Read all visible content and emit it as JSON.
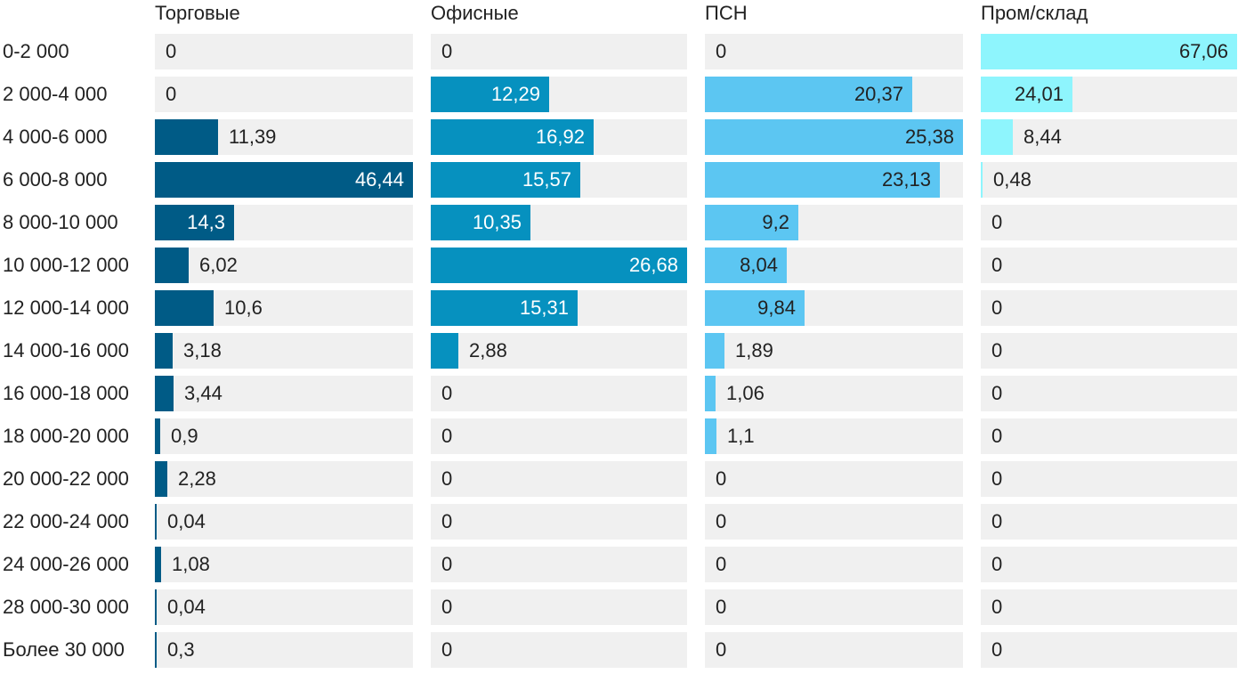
{
  "chart_data": {
    "type": "bar",
    "orientation": "horizontal",
    "categories": [
      "0-2 000",
      "2 000-4 000",
      "4 000-6 000",
      "6 000-8 000",
      "8 000-10 000",
      "10 000-12 000",
      "12 000-14 000",
      "14 000-16 000",
      "16 000-18 000",
      "18 000-20 000",
      "20 000-22 000",
      "22 000-24 000",
      "24 000-26 000",
      "28 000-30 000",
      "Более 30 000"
    ],
    "series": [
      {
        "name": "Торговые",
        "color": "#005b86",
        "label_color": "#ffffff",
        "labels": [
          "0",
          "0",
          "11,39",
          "46,44",
          "14,3",
          "6,02",
          "10,6",
          "3,18",
          "3,44",
          "0,9",
          "2,28",
          "0,04",
          "1,08",
          "0,04",
          "0,3"
        ],
        "values": [
          0,
          0,
          11.39,
          46.44,
          14.3,
          6.02,
          10.6,
          3.18,
          3.44,
          0.9,
          2.28,
          0.04,
          1.08,
          0.04,
          0.3
        ],
        "xlim": [
          0,
          46.44
        ]
      },
      {
        "name": "Офисные",
        "color": "#0691bf",
        "label_color": "#ffffff",
        "labels": [
          "0",
          "12,29",
          "16,92",
          "15,57",
          "10,35",
          "26,68",
          "15,31",
          "2,88",
          "0",
          "0",
          "0",
          "0",
          "0",
          "0",
          "0"
        ],
        "values": [
          0,
          12.29,
          16.92,
          15.57,
          10.35,
          26.68,
          15.31,
          2.88,
          0,
          0,
          0,
          0,
          0,
          0,
          0
        ],
        "xlim": [
          0,
          26.68
        ]
      },
      {
        "name": "ПСН",
        "color": "#5cc6f2",
        "label_color": "#222222",
        "labels": [
          "0",
          "20,37",
          "25,38",
          "23,13",
          "9,2",
          "8,04",
          "9,84",
          "1,89",
          "1,06",
          "1,1",
          "0",
          "0",
          "0",
          "0",
          "0"
        ],
        "values": [
          0,
          20.37,
          25.38,
          23.13,
          9.2,
          8.04,
          9.84,
          1.89,
          1.06,
          1.1,
          0,
          0,
          0,
          0,
          0
        ],
        "xlim": [
          0,
          25.38
        ]
      },
      {
        "name": "Пром/склад",
        "color": "#8ef5fd",
        "label_color": "#222222",
        "labels": [
          "67,06",
          "24,01",
          "8,44",
          "0,48",
          "0",
          "0",
          "0",
          "0",
          "0",
          "0",
          "0",
          "0",
          "0",
          "0",
          "0"
        ],
        "values": [
          67.06,
          24.01,
          8.44,
          0.48,
          0,
          0,
          0,
          0,
          0,
          0,
          0,
          0,
          0,
          0,
          0
        ],
        "xlim": [
          0,
          67.06
        ]
      }
    ]
  }
}
